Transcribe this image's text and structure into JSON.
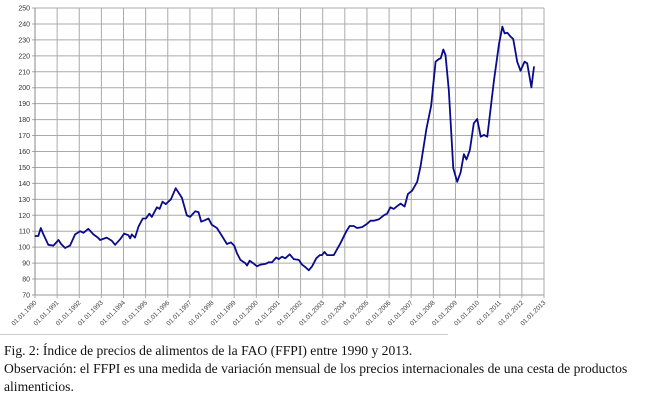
{
  "chart_data": {
    "type": "line",
    "title": "",
    "xlabel": "",
    "ylabel": "",
    "ylim": [
      70,
      250
    ],
    "yticks": [
      70,
      80,
      90,
      100,
      110,
      120,
      130,
      140,
      150,
      160,
      170,
      180,
      190,
      200,
      210,
      220,
      230,
      240,
      250
    ],
    "xlim": [
      1990,
      2013
    ],
    "xtick_labels": [
      "01.01.1990",
      "01.01.1991",
      "01.01.1992",
      "01.01.1993",
      "01.01.1994",
      "01.01.1995",
      "01.01.1996",
      "01.01.1997",
      "01.01.1998",
      "01.01.1999",
      "01.01.2000",
      "01.01.2001",
      "01.01.2002",
      "01.01.2003",
      "01.01.2004",
      "01.01.2005",
      "01.01.2006",
      "01.01.2007",
      "01.01.2008",
      "01.01.2009",
      "01.01.2010",
      "01.01.2011",
      "01.01.2012",
      "01.01.2013"
    ],
    "grid": true,
    "line_color": "#0a0a8c",
    "series": [
      {
        "points": [
          [
            1990.0,
            107
          ],
          [
            1990.15,
            107
          ],
          [
            1990.26,
            112
          ],
          [
            1990.38,
            108
          ],
          [
            1990.6,
            101.5
          ],
          [
            1990.83,
            101
          ],
          [
            1991.06,
            104.5
          ],
          [
            1991.18,
            102
          ],
          [
            1991.36,
            99.5
          ],
          [
            1991.58,
            101
          ],
          [
            1991.81,
            108
          ],
          [
            1992.04,
            110
          ],
          [
            1992.19,
            109
          ],
          [
            1992.41,
            111.5
          ],
          [
            1992.64,
            108
          ],
          [
            1992.84,
            106
          ],
          [
            1992.94,
            104.5
          ],
          [
            1993.24,
            106
          ],
          [
            1993.47,
            104
          ],
          [
            1993.62,
            101.5
          ],
          [
            1993.85,
            105
          ],
          [
            1994.03,
            108.5
          ],
          [
            1994.22,
            107.5
          ],
          [
            1994.3,
            105.5
          ],
          [
            1994.37,
            108
          ],
          [
            1994.52,
            106
          ],
          [
            1994.68,
            113
          ],
          [
            1994.87,
            118
          ],
          [
            1995.01,
            118
          ],
          [
            1995.17,
            121
          ],
          [
            1995.28,
            119
          ],
          [
            1995.51,
            125
          ],
          [
            1995.63,
            124
          ],
          [
            1995.76,
            128.5
          ],
          [
            1995.91,
            127
          ],
          [
            1996.14,
            130
          ],
          [
            1996.36,
            137
          ],
          [
            1996.64,
            131
          ],
          [
            1996.86,
            120
          ],
          [
            1997.01,
            119
          ],
          [
            1997.24,
            122.5
          ],
          [
            1997.39,
            122
          ],
          [
            1997.51,
            116
          ],
          [
            1997.69,
            117
          ],
          [
            1997.84,
            118
          ],
          [
            1997.99,
            114
          ],
          [
            1998.22,
            112
          ],
          [
            1998.45,
            107
          ],
          [
            1998.67,
            102
          ],
          [
            1998.85,
            103
          ],
          [
            1999.0,
            101
          ],
          [
            1999.13,
            96
          ],
          [
            1999.28,
            92
          ],
          [
            1999.5,
            90
          ],
          [
            1999.58,
            88.5
          ],
          [
            1999.7,
            91.5
          ],
          [
            1999.85,
            90
          ],
          [
            2000.03,
            88
          ],
          [
            2000.18,
            89
          ],
          [
            2000.41,
            89.5
          ],
          [
            2000.56,
            90.5
          ],
          [
            2000.71,
            90.5
          ],
          [
            2000.9,
            93.5
          ],
          [
            2001.01,
            92.5
          ],
          [
            2001.16,
            94
          ],
          [
            2001.31,
            93
          ],
          [
            2001.51,
            95.5
          ],
          [
            2001.69,
            92.5
          ],
          [
            2001.92,
            92
          ],
          [
            2002.07,
            89
          ],
          [
            2002.22,
            87.5
          ],
          [
            2002.37,
            85.5
          ],
          [
            2002.52,
            88
          ],
          [
            2002.71,
            93
          ],
          [
            2002.87,
            95
          ],
          [
            2002.97,
            95
          ],
          [
            2003.08,
            97
          ],
          [
            2003.2,
            95
          ],
          [
            2003.27,
            95
          ],
          [
            2003.5,
            95
          ],
          [
            2003.8,
            102.4
          ],
          [
            2004.07,
            110
          ],
          [
            2004.22,
            113.3
          ],
          [
            2004.4,
            113.3
          ],
          [
            2004.55,
            112
          ],
          [
            2004.78,
            112.6
          ],
          [
            2005.01,
            114.7
          ],
          [
            2005.16,
            116.6
          ],
          [
            2005.31,
            116.6
          ],
          [
            2005.54,
            117.5
          ],
          [
            2005.76,
            120
          ],
          [
            2005.91,
            121
          ],
          [
            2006.06,
            125
          ],
          [
            2006.21,
            124
          ],
          [
            2006.39,
            126
          ],
          [
            2006.52,
            127.3
          ],
          [
            2006.7,
            125.5
          ],
          [
            2006.85,
            133.3
          ],
          [
            2007.04,
            135.4
          ],
          [
            2007.27,
            141
          ],
          [
            2007.42,
            150.5
          ],
          [
            2007.69,
            174.5
          ],
          [
            2007.9,
            188.5
          ],
          [
            2008.1,
            216.3
          ],
          [
            2008.25,
            218
          ],
          [
            2008.33,
            218.4
          ],
          [
            2008.45,
            224
          ],
          [
            2008.55,
            220.5
          ],
          [
            2008.7,
            198.6
          ],
          [
            2008.9,
            149.4
          ],
          [
            2009.08,
            141
          ],
          [
            2009.23,
            146.8
          ],
          [
            2009.38,
            158.3
          ],
          [
            2009.5,
            155
          ],
          [
            2009.65,
            161
          ],
          [
            2009.83,
            177.7
          ],
          [
            2009.98,
            180.4
          ],
          [
            2010.14,
            169.3
          ],
          [
            2010.29,
            170.4
          ],
          [
            2010.44,
            169.3
          ],
          [
            2010.74,
            204.8
          ],
          [
            2010.97,
            227.8
          ],
          [
            2011.12,
            238.3
          ],
          [
            2011.22,
            234.1
          ],
          [
            2011.34,
            234.5
          ],
          [
            2011.49,
            232
          ],
          [
            2011.61,
            230.6
          ],
          [
            2011.79,
            216.3
          ],
          [
            2011.94,
            210.7
          ],
          [
            2012.12,
            216.3
          ],
          [
            2012.24,
            215.3
          ],
          [
            2012.43,
            200.2
          ],
          [
            2012.55,
            213.2
          ]
        ]
      }
    ]
  },
  "caption": {
    "line1": "Fig. 2: Índice de precios de alimentos de la FAO (FFPI) entre 1990 y 2013.",
    "line2": "Observación: el FFPI es una medida de variación mensual de los precios internacionales de una cesta de productos",
    "line3": "alimenticios."
  }
}
